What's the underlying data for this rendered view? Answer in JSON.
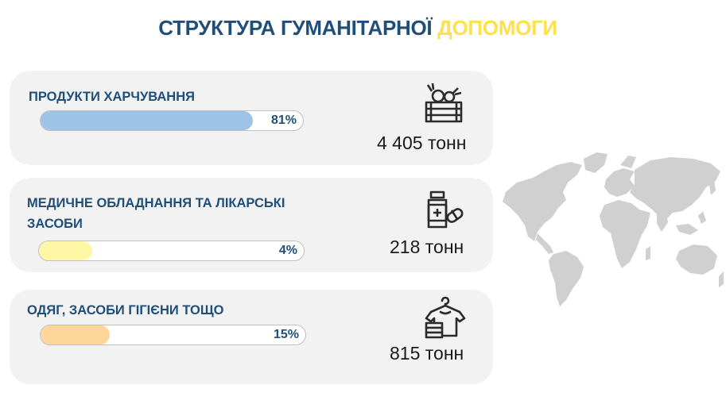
{
  "title": {
    "part1": "СТРУКТУРА ГУМАНІТАРНОЇ",
    "part2": "ДОПОМОГИ"
  },
  "colors": {
    "title_primary": "#1f4e79",
    "title_accent": "#ffe14d",
    "card_background": "#f2f2f2",
    "food_bar": "#9dc3e6",
    "medical_bar": "#fff7a6",
    "clothing_bar": "#ffd699",
    "map": "#d0d0d0"
  },
  "categories": [
    {
      "label": "ПРОДУКТИ ХАРЧУВАННЯ",
      "percent": 81,
      "percent_label": "81%",
      "amount": "4 405 тонн",
      "icon": "food-crate-icon"
    },
    {
      "label_line1": "МЕДИЧНЕ ОБЛАДНАННЯ ТА ЛІКАРСЬКІ",
      "label_line2": "ЗАСОБИ",
      "percent": 4,
      "percent_label": "4%",
      "amount": "218 тонн",
      "icon": "medicine-bottle-icon"
    },
    {
      "label": "ОДЯГ, ЗАСОБИ ГІГІЄНИ ТОЩО",
      "percent": 15,
      "percent_label": "15%",
      "amount": "815 тонн",
      "icon": "clothing-hanger-icon"
    }
  ],
  "map_icon": "world-map-icon"
}
